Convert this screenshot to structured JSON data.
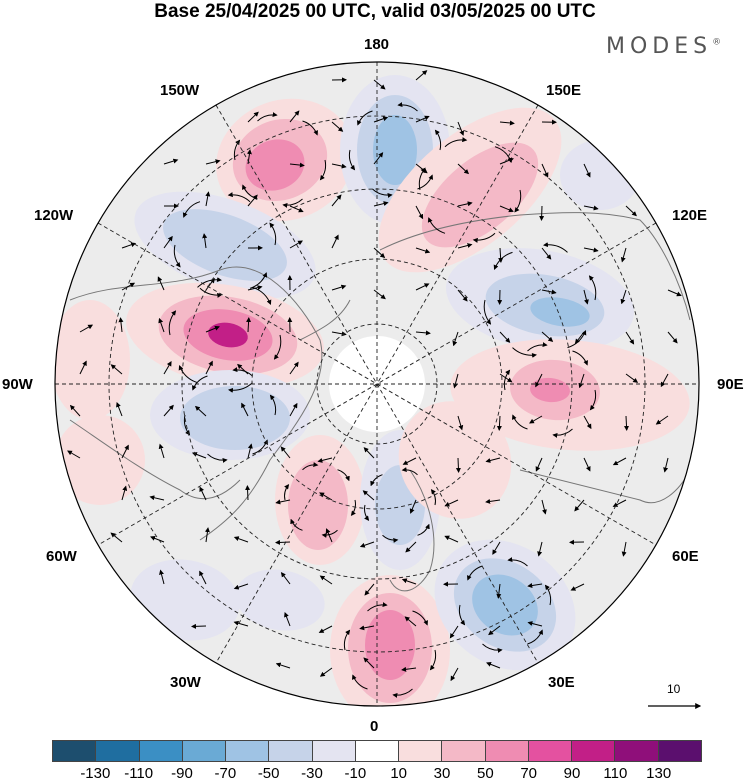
{
  "title": "Base 25/04/2025 00 UTC, valid 03/05/2025 00 UTC",
  "logo": {
    "text": "MODES",
    "mark": "®"
  },
  "longitude_labels": {
    "n180": "180",
    "e150": "150E",
    "e120": "120E",
    "e90": "90E",
    "e60": "60E",
    "e30": "30E",
    "s0": "0",
    "w30": "30W",
    "w60": "60W",
    "w90": "90W",
    "w120": "120W",
    "w150": "150W"
  },
  "colorbar": {
    "colors": [
      "#1d4e6e",
      "#1f6ea0",
      "#3b8fc4",
      "#6aaad5",
      "#9fc3e4",
      "#c6d3e9",
      "#e4e4f1",
      "#ffffff",
      "#f9dede",
      "#f4b9c7",
      "#ef8cb2",
      "#e451a0",
      "#c21f87",
      "#8f0f7a",
      "#5b0f6e"
    ],
    "ticks": [
      "-130",
      "-110",
      "-90",
      "-70",
      "-50",
      "-30",
      "-10",
      "10",
      "30",
      "50",
      "70",
      "90",
      "110",
      "130"
    ]
  },
  "reference_vector": {
    "value": "10"
  },
  "map": {
    "projection": "polar stereographic (north pole)",
    "field_colors": {
      "neutral": "#ececec",
      "pos_light": "#f9dede",
      "pos_mid": "#f4b9c7",
      "pos_high": "#ef8cb2",
      "pos_max": "#c21f87",
      "neg_light": "#e4e4f1",
      "neg_mid": "#c6d3e9",
      "neg_high": "#9fc3e4",
      "neg_max": "#6aaad5"
    }
  }
}
